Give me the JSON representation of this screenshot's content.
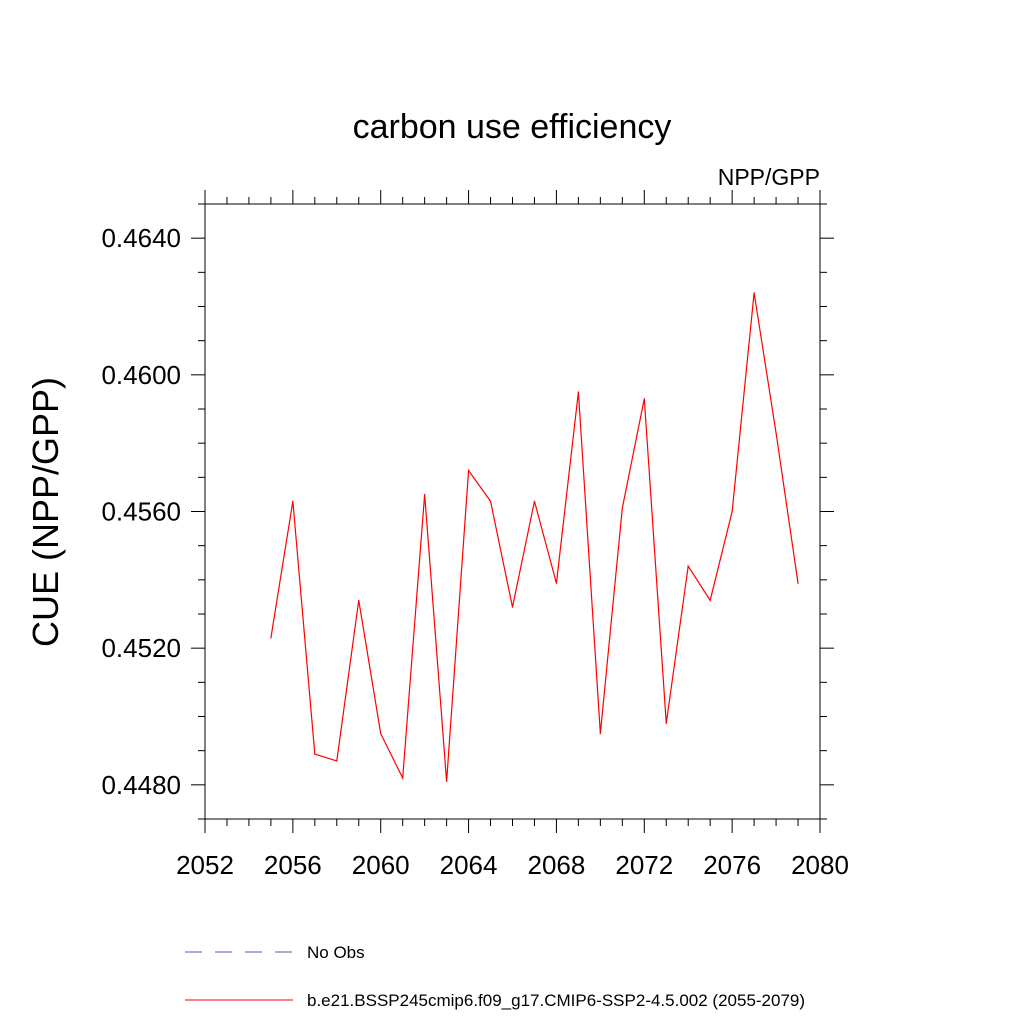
{
  "chart_data": {
    "type": "line",
    "title": "carbon use efficiency",
    "subtitle": "NPP/GPP",
    "ylabel": "CUE  (NPP/GPP)",
    "xlabel": "",
    "xlim": [
      2052,
      2080
    ],
    "ylim": [
      0.447,
      0.465
    ],
    "x_ticks": [
      2052,
      2056,
      2060,
      2064,
      2068,
      2072,
      2076,
      2080
    ],
    "x_tick_labels": [
      "2052",
      "2056",
      "2060",
      "2064",
      "2068",
      "2072",
      "2076",
      "2080"
    ],
    "x_minor_step": 1,
    "y_ticks": [
      0.448,
      0.452,
      0.456,
      0.46,
      0.464
    ],
    "y_tick_labels": [
      "0.4480",
      "0.4520",
      "0.4560",
      "0.4600",
      "0.4640"
    ],
    "y_minor_step": 0.001,
    "grid": false,
    "legend_position": "bottom",
    "series": [
      {
        "name": "b.e21.BSSP245cmip6.f09_g17.CMIP6-SSP2-4.5.002 (2055-2079)",
        "color": "#ff0000",
        "dash": "solid",
        "x": [
          2055,
          2056,
          2057,
          2058,
          2059,
          2060,
          2061,
          2062,
          2063,
          2064,
          2065,
          2066,
          2067,
          2068,
          2069,
          2070,
          2071,
          2072,
          2073,
          2074,
          2075,
          2076,
          2077,
          2078,
          2079
        ],
        "values": [
          0.4523,
          0.4563,
          0.4489,
          0.4487,
          0.4534,
          0.4495,
          0.4482,
          0.4565,
          0.4481,
          0.4572,
          0.4563,
          0.4532,
          0.4563,
          0.4539,
          0.4595,
          0.4495,
          0.4561,
          0.4593,
          0.4498,
          0.4544,
          0.4534,
          0.456,
          0.4624,
          0.4583,
          0.4539
        ]
      }
    ],
    "legend": [
      {
        "label": "No Obs",
        "color": "#5a5ab4",
        "dash": "dashed"
      },
      {
        "label": "b.e21.BSSP245cmip6.f09_g17.CMIP6-SSP2-4.5.002 (2055-2079)",
        "color": "#ff0000",
        "dash": "solid"
      }
    ]
  }
}
